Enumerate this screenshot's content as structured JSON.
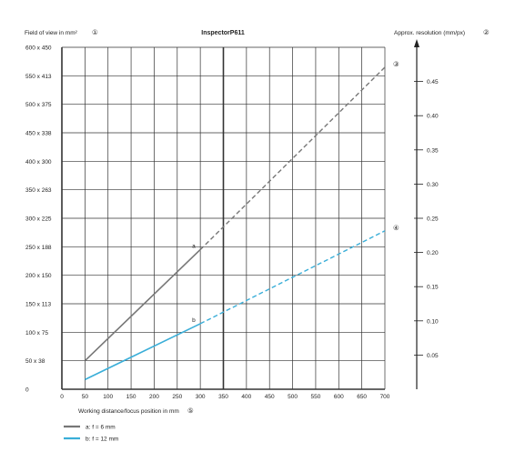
{
  "chart_data": {
    "type": "line",
    "title": "InspectorP611",
    "ylabel": "Field of view in mm²",
    "ylabel_marker": "①",
    "y2label": "Approx. resolution (mm/px)",
    "y2label_marker": "②",
    "xlabel": "Working distance/focus position in mm",
    "xlabel_marker": "⑤",
    "xlim": [
      0,
      700
    ],
    "ylim": [
      0,
      600
    ],
    "y2lim": [
      0,
      0.5
    ],
    "x_ticks": [
      0,
      50,
      100,
      150,
      200,
      250,
      300,
      350,
      400,
      450,
      500,
      550,
      600,
      650,
      700
    ],
    "x_tick_labels": [
      "0",
      "50",
      "100",
      "150",
      "200",
      "250",
      "300",
      "350",
      "400",
      "450",
      "500",
      "550",
      "600",
      "650",
      "700"
    ],
    "y_ticks": [
      0,
      50,
      100,
      150,
      200,
      250,
      300,
      350,
      400,
      450,
      500,
      550,
      600
    ],
    "y_tick_labels": [
      "0",
      "50 x 38",
      "100 x 75",
      "150 x 113",
      "200 x 150",
      "250 x 188",
      "300 x 225",
      "350 x 263",
      "400 x 300",
      "450 x 338",
      "500 x 375",
      "550 x 413",
      "600 x 450"
    ],
    "y2_ticks": [
      0.05,
      0.1,
      0.15,
      0.2,
      0.25,
      0.3,
      0.35,
      0.4,
      0.45
    ],
    "y2_tick_labels": [
      "0.05",
      "0.10",
      "0.15",
      "0.20",
      "0.25",
      "0.30",
      "0.35",
      "0.40",
      "0.45"
    ],
    "grid": true,
    "series": [
      {
        "name": "a: f = 6 mm",
        "label": "a",
        "color": "#777777",
        "solid": {
          "x": [
            50,
            300
          ],
          "y": [
            50,
            245
          ]
        },
        "dashed": {
          "x": [
            300,
            700
          ],
          "y": [
            245,
            565
          ]
        },
        "end_marker": "③"
      },
      {
        "name": "b: f = 12 mm",
        "label": "b",
        "color": "#3aaed8",
        "solid": {
          "x": [
            50,
            300
          ],
          "y": [
            17,
            115
          ]
        },
        "dashed": {
          "x": [
            300,
            700
          ],
          "y": [
            115,
            278
          ]
        },
        "end_marker": "④"
      }
    ],
    "legend_position": "bottom-left"
  }
}
